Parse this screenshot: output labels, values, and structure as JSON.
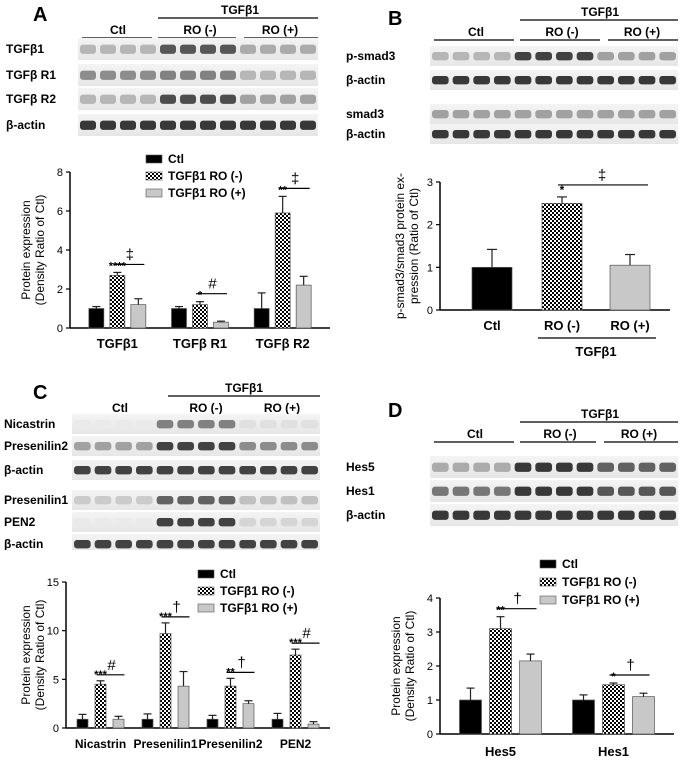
{
  "panels": {
    "A": {
      "label": "A",
      "blot": {
        "ctl": "Ctl",
        "treat": "TGFβ1",
        "ro_neg": "RO (-)",
        "ro_pos": "RO (+)",
        "rows": [
          "TGFβ1",
          "TGFβ R1",
          "TGFβ R2",
          "β-actin"
        ]
      },
      "legend": [
        "Ctl",
        "TGFβ1  RO (-)",
        "TGFβ1  RO (+)"
      ],
      "chart_data": {
        "type": "bar",
        "categories": [
          "TGFβ1",
          "TGFβ R1",
          "TGFβ R2"
        ],
        "ylabel": "Protein expression\n(Density Ratio of Ctl)",
        "ylim": [
          0,
          8
        ],
        "yticks": [
          0,
          2,
          4,
          6,
          8
        ],
        "series": [
          {
            "name": "Ctl",
            "values": [
              1.0,
              1.0,
              1.0
            ],
            "errors": [
              0.1,
              0.1,
              0.8
            ]
          },
          {
            "name": "TGFβ1  RO (-)",
            "values": [
              2.7,
              1.2,
              5.9
            ],
            "errors": [
              0.15,
              0.15,
              0.85
            ]
          },
          {
            "name": "TGFβ1  RO (+)",
            "values": [
              1.2,
              0.3,
              2.2
            ],
            "errors": [
              0.3,
              0.05,
              0.45
            ]
          }
        ],
        "stars": [
          "****",
          "*",
          "**"
        ],
        "sig": [
          "‡",
          "#",
          "‡"
        ]
      }
    },
    "B": {
      "label": "B",
      "blot": {
        "ctl": "Ctl",
        "treat": "TGFβ1",
        "ro_neg": "RO (-)",
        "ro_pos": "RO (+)",
        "rows": [
          "p-smad3",
          "β-actin",
          "smad3",
          "β-actin"
        ]
      },
      "chart_data": {
        "type": "bar",
        "categories": [
          "Ctl",
          "RO (-)",
          "RO (+)"
        ],
        "group_label": "TGFβ1",
        "ylabel": "p-smad3/smad3 protein ex-\npression (Ratio of Ctl)",
        "ylim": [
          0,
          3
        ],
        "yticks": [
          0,
          1,
          2,
          3
        ],
        "values": [
          1.0,
          2.5,
          1.05
        ],
        "errors": [
          0.42,
          0.15,
          0.25
        ],
        "stars": [
          "",
          "*",
          ""
        ],
        "sig": "‡"
      }
    },
    "C": {
      "label": "C",
      "blot": {
        "ctl": "Ctl",
        "treat": "TGFβ1",
        "ro_neg": "RO (-)",
        "ro_pos": "RO (+)",
        "rows1": [
          "Nicastrin",
          "Presenilin2",
          "β-actin"
        ],
        "rows2": [
          "Presenilin1",
          "PEN2",
          "β-actin"
        ]
      },
      "legend": [
        "Ctl",
        "TGFβ1  RO (-)",
        "TGFβ1  RO (+)"
      ],
      "chart_data": {
        "type": "bar",
        "categories": [
          "Nicastrin",
          "Presenilin1",
          "Presenilin2",
          "PEN2"
        ],
        "ylabel": "Protein expression\n(Density Ratio of Ctl)",
        "ylim": [
          0,
          15
        ],
        "yticks": [
          0,
          5,
          10,
          15
        ],
        "series": [
          {
            "name": "Ctl",
            "values": [
              0.9,
              0.9,
              0.9,
              0.9
            ],
            "errors": [
              0.5,
              0.55,
              0.4,
              0.6
            ]
          },
          {
            "name": "TGFβ1  RO (-)",
            "values": [
              4.5,
              9.7,
              4.3,
              7.5
            ],
            "errors": [
              0.35,
              1.1,
              0.8,
              0.6
            ]
          },
          {
            "name": "TGFβ1  RO (+)",
            "values": [
              0.9,
              4.3,
              2.5,
              0.4
            ],
            "errors": [
              0.3,
              1.5,
              0.3,
              0.25
            ]
          }
        ],
        "stars": [
          "***",
          "***",
          "**",
          "***"
        ],
        "sig": [
          "#",
          "†",
          "†",
          "#"
        ]
      }
    },
    "D": {
      "label": "D",
      "blot": {
        "ctl": "Ctl",
        "treat": "TGFβ1",
        "ro_neg": "RO (-)",
        "ro_pos": "RO (+)",
        "rows": [
          "Hes5",
          "Hes1",
          "β-actin"
        ]
      },
      "legend": [
        "Ctl",
        "TGFβ1  RO (-)",
        "TGFβ1  RO (+)"
      ],
      "chart_data": {
        "type": "bar",
        "categories": [
          "Hes5",
          "Hes1"
        ],
        "ylabel": "Protein expression\n(Density Ratio of Ctl)",
        "ylim": [
          0,
          4
        ],
        "yticks": [
          0,
          1,
          2,
          3,
          4
        ],
        "series": [
          {
            "name": "Ctl",
            "values": [
              1.0,
              1.0
            ],
            "errors": [
              0.35,
              0.15
            ]
          },
          {
            "name": "TGFβ1  RO (-)",
            "values": [
              3.1,
              1.45
            ],
            "errors": [
              0.35,
              0.05
            ]
          },
          {
            "name": "TGFβ1  RO (+)",
            "values": [
              2.15,
              1.1
            ],
            "errors": [
              0.2,
              0.1
            ]
          }
        ],
        "stars": [
          "**",
          "*"
        ],
        "sig": [
          "†",
          "†"
        ]
      }
    }
  }
}
